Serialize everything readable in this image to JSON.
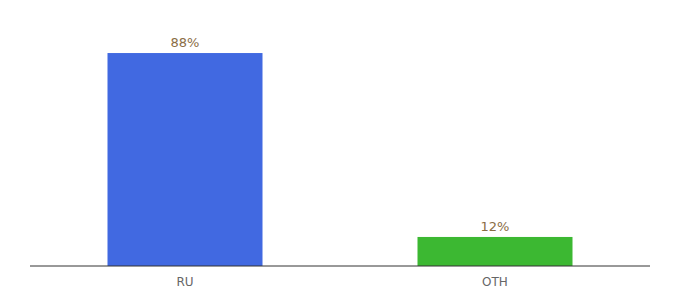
{
  "chart_data": {
    "type": "bar",
    "categories": [
      "RU",
      "OTH"
    ],
    "values": [
      88,
      12
    ],
    "colors": [
      "#4169e1",
      "#3cb832"
    ],
    "ylim": [
      0,
      100
    ],
    "data_labels": true,
    "value_labels": [
      "88%",
      "12%"
    ],
    "tick_labels": "x"
  }
}
